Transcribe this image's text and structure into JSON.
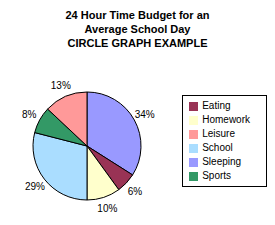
{
  "chart_data": {
    "type": "pie",
    "title": [
      "24 Hour Time Budget for an",
      "Average School Day"
    ],
    "subtitle": "CIRCLE GRAPH EXAMPLE",
    "categories": [
      "Sleeping",
      "Eating",
      "Homework",
      "School",
      "Sports",
      "Leisure"
    ],
    "values": [
      34,
      6,
      10,
      29,
      8,
      13
    ],
    "value_labels": [
      "34%",
      "6%",
      "10%",
      "29%",
      "8%",
      "13%"
    ],
    "colors": [
      "#9999FF",
      "#993355",
      "#FFFFCC",
      "#AADDFF",
      "#339966",
      "#FF9999"
    ],
    "data_labels": true,
    "legend": "right"
  }
}
